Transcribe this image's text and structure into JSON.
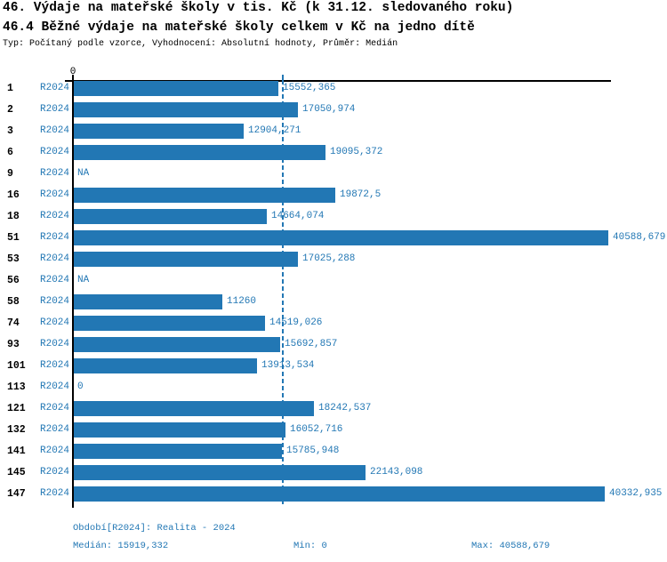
{
  "header": {
    "title_line1": "46. Výdaje na mateřské školy v tis. Kč (k 31.12. sledovaného roku)",
    "title_line2": "46.4 Běžné výdaje na mateřské školy celkem v Kč na jedno dítě",
    "meta": "Typ: Počítaný podle vzorce, Vyhodnocení: Absolutní hodnoty, Průměr: Medián"
  },
  "chart_data": {
    "type": "bar",
    "orientation": "horizontal",
    "title": "46. Výdaje na mateřské školy v tis. Kč (k 31.12. sledovaného roku)",
    "subtitle": "46.4 Běžné výdaje na mateřské školy celkem v Kč na jedno dítě",
    "series_name": "R2024",
    "axis": {
      "tick_zero_label": "0",
      "min": 0,
      "max": 40588.679,
      "grid": false
    },
    "median": {
      "value": 15919.332,
      "style": "dashed-vertical-line"
    },
    "rows": [
      {
        "id": "1",
        "period": "R2024",
        "value": 15552.365,
        "label": "15552,365"
      },
      {
        "id": "2",
        "period": "R2024",
        "value": 17050.974,
        "label": "17050,974"
      },
      {
        "id": "3",
        "period": "R2024",
        "value": 12904.271,
        "label": "12904,271"
      },
      {
        "id": "6",
        "period": "R2024",
        "value": 19095.372,
        "label": "19095,372"
      },
      {
        "id": "9",
        "period": "R2024",
        "value": null,
        "label": "NA"
      },
      {
        "id": "16",
        "period": "R2024",
        "value": 19872.5,
        "label": "19872,5"
      },
      {
        "id": "18",
        "period": "R2024",
        "value": 14664.074,
        "label": "14664,074"
      },
      {
        "id": "51",
        "period": "R2024",
        "value": 40588.679,
        "label": "40588,679"
      },
      {
        "id": "53",
        "period": "R2024",
        "value": 17025.288,
        "label": "17025,288"
      },
      {
        "id": "56",
        "period": "R2024",
        "value": null,
        "label": "NA"
      },
      {
        "id": "58",
        "period": "R2024",
        "value": 11260,
        "label": "11260"
      },
      {
        "id": "74",
        "period": "R2024",
        "value": 14519.026,
        "label": "14519,026"
      },
      {
        "id": "93",
        "period": "R2024",
        "value": 15692.857,
        "label": "15692,857"
      },
      {
        "id": "101",
        "period": "R2024",
        "value": 13913.534,
        "label": "13913,534"
      },
      {
        "id": "113",
        "period": "R2024",
        "value": 0,
        "label": "0"
      },
      {
        "id": "121",
        "period": "R2024",
        "value": 18242.537,
        "label": "18242,537"
      },
      {
        "id": "132",
        "period": "R2024",
        "value": 16052.716,
        "label": "16052,716"
      },
      {
        "id": "141",
        "period": "R2024",
        "value": 15785.948,
        "label": "15785,948"
      },
      {
        "id": "145",
        "period": "R2024",
        "value": 22143.098,
        "label": "22143,098"
      },
      {
        "id": "147",
        "period": "R2024",
        "value": 40332.935,
        "label": "40332,935"
      }
    ]
  },
  "footer": {
    "period_line": "Období[R2024]: Realita - 2024",
    "median_label": "Medián: 15919,332",
    "min_label": "Min: 0",
    "max_label": "Max: 40588,679"
  },
  "colors": {
    "bar_blue": "#2277B4",
    "text_blue": "#2277B4",
    "axis_black": "#000000",
    "background": "#FFFFFF"
  }
}
